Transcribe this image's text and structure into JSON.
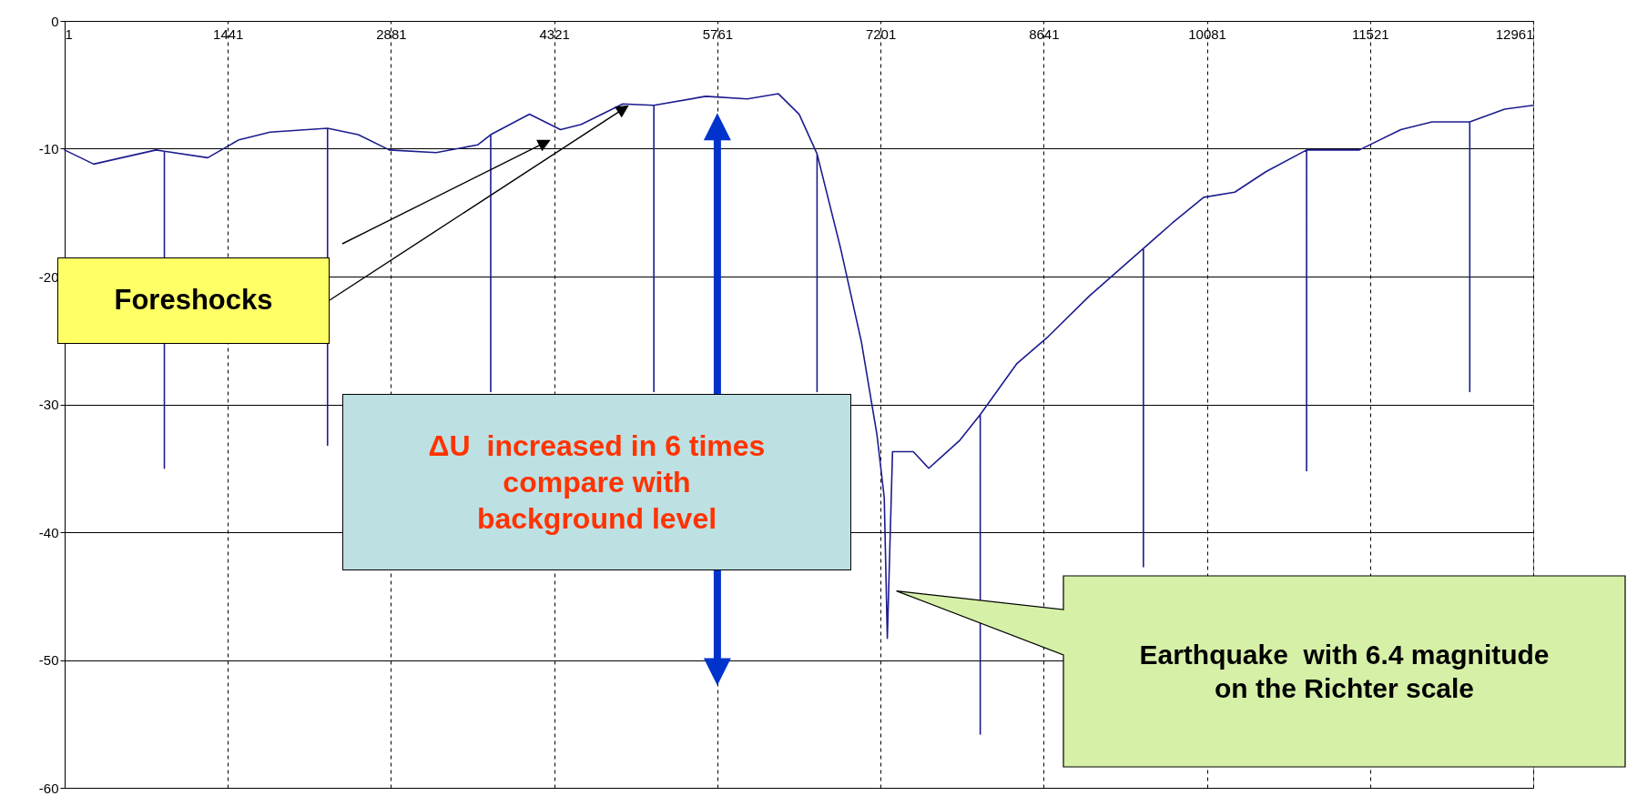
{
  "chart_data": {
    "type": "line",
    "x": [
      1,
      257,
      807,
      881,
      881,
      881,
      1264,
      1539,
      1814,
      2321,
      2321,
      2321,
      2592,
      2867,
      3279,
      3645,
      3761,
      3761,
      3761,
      4103,
      4377,
      4560,
      4926,
      5201,
      5201,
      5201,
      5659,
      6025,
      6300,
      6483,
      6641,
      6641,
      6641,
      6849,
      7032,
      7170,
      7234,
      7261,
      7307,
      7490,
      7627,
      7902,
      8081,
      8081,
      8081,
      8405,
      8680,
      9046,
      9521,
      9521,
      9521,
      9778,
      10053,
      10327,
      10602,
      10961,
      10961,
      10961,
      11426,
      11793,
      12067,
      12401,
      12401,
      12401,
      12708,
      12961
    ],
    "series": [
      {
        "color": "#1c1c8f",
        "values": [
          -10.1,
          -11.2,
          -10.1,
          -10.2,
          -35,
          -10.2,
          -10.7,
          -9.3,
          -8.7,
          -8.4,
          -33.2,
          -8.4,
          -8.9,
          -10.1,
          -10.3,
          -9.7,
          -8.9,
          -29,
          -8.9,
          -7.3,
          -8.5,
          -8.1,
          -6.5,
          -6.6,
          -29,
          -6.6,
          -5.9,
          -6.1,
          -5.7,
          -7.3,
          -10.4,
          -29,
          -10.4,
          -17.8,
          -25.1,
          -32.4,
          -37.3,
          -48.3,
          -33.7,
          -33.7,
          -35,
          -32.8,
          -30.8,
          -55.8,
          -30.8,
          -26.8,
          -24.7,
          -21.5,
          -17.8,
          -42.7,
          -17.8,
          -15.8,
          -13.8,
          -13.4,
          -11.8,
          -10.1,
          -35.2,
          -10.1,
          -10.1,
          -8.5,
          -7.9,
          -7.9,
          -29,
          -7.9,
          -6.9,
          -6.6
        ]
      }
    ],
    "xlim": [
      1,
      12961
    ],
    "xticks": [
      1,
      1441,
      2881,
      4321,
      5761,
      7201,
      8641,
      10081,
      11521,
      12961
    ],
    "ylim": [
      -60,
      0
    ],
    "yticks": [
      -60,
      -50,
      -40,
      -30,
      -20,
      -10,
      0
    ],
    "grid": true,
    "marker": "none",
    "line_style": "solid",
    "annotations": [
      "Foreshocks",
      "ΔU  increased in 6 times compare with background level",
      "Earthquake  with 6.4 magnitude on the Richter scale"
    ]
  }
}
